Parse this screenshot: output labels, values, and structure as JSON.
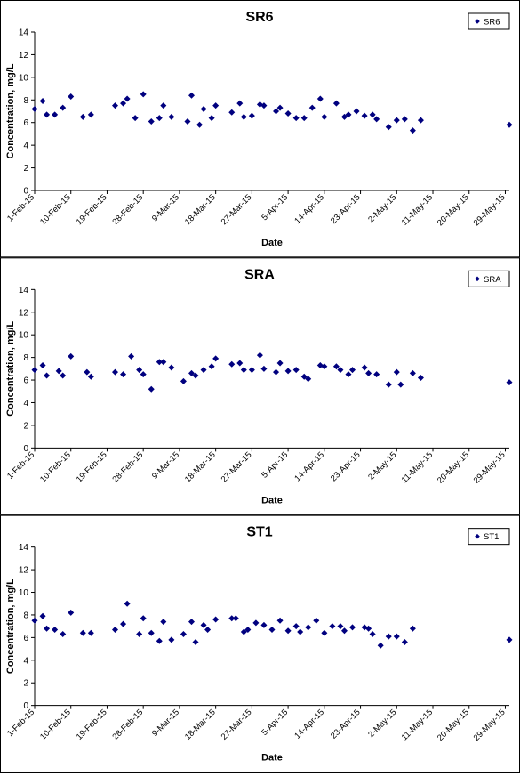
{
  "chart_data": [
    {
      "type": "scatter",
      "title": "SR6",
      "xlabel": "Date",
      "ylabel": "Concentration, mg/L",
      "ylim": [
        0,
        14
      ],
      "yticks": [
        0,
        2,
        4,
        6,
        8,
        10,
        12,
        14
      ],
      "xlim": [
        "1-Feb-15",
        "30-May-15"
      ],
      "xticks": [
        "1-Feb-15",
        "10-Feb-15",
        "19-Feb-15",
        "28-Feb-15",
        "9-Mar-15",
        "18-Mar-15",
        "27-Mar-15",
        "5-Apr-15",
        "14-Apr-15",
        "23-Apr-15",
        "2-May-15",
        "11-May-15",
        "20-May-15",
        "29-May-15"
      ],
      "grid": false,
      "legend_position": "top-right",
      "series": [
        {
          "name": "SR6",
          "color": "#00007f",
          "marker": "diamond",
          "points": [
            {
              "x": "1-Feb-15",
              "y": 7.2
            },
            {
              "x": "3-Feb-15",
              "y": 7.9
            },
            {
              "x": "4-Feb-15",
              "y": 6.7
            },
            {
              "x": "6-Feb-15",
              "y": 6.7
            },
            {
              "x": "8-Feb-15",
              "y": 7.3
            },
            {
              "x": "10-Feb-15",
              "y": 8.3
            },
            {
              "x": "13-Feb-15",
              "y": 6.5
            },
            {
              "x": "15-Feb-15",
              "y": 6.7
            },
            {
              "x": "21-Feb-15",
              "y": 7.5
            },
            {
              "x": "23-Feb-15",
              "y": 7.7
            },
            {
              "x": "24-Feb-15",
              "y": 8.1
            },
            {
              "x": "26-Feb-15",
              "y": 6.4
            },
            {
              "x": "28-Feb-15",
              "y": 8.5
            },
            {
              "x": "2-Mar-15",
              "y": 6.1
            },
            {
              "x": "4-Mar-15",
              "y": 6.4
            },
            {
              "x": "5-Mar-15",
              "y": 7.5
            },
            {
              "x": "7-Mar-15",
              "y": 6.5
            },
            {
              "x": "11-Mar-15",
              "y": 6.1
            },
            {
              "x": "12-Mar-15",
              "y": 8.4
            },
            {
              "x": "14-Mar-15",
              "y": 5.8
            },
            {
              "x": "15-Mar-15",
              "y": 7.2
            },
            {
              "x": "17-Mar-15",
              "y": 6.4
            },
            {
              "x": "18-Mar-15",
              "y": 7.5
            },
            {
              "x": "22-Mar-15",
              "y": 6.9
            },
            {
              "x": "24-Mar-15",
              "y": 7.7
            },
            {
              "x": "25-Mar-15",
              "y": 6.5
            },
            {
              "x": "27-Mar-15",
              "y": 6.6
            },
            {
              "x": "29-Mar-15",
              "y": 7.6
            },
            {
              "x": "30-Mar-15",
              "y": 7.5
            },
            {
              "x": "2-Apr-15",
              "y": 7.0
            },
            {
              "x": "3-Apr-15",
              "y": 7.3
            },
            {
              "x": "5-Apr-15",
              "y": 6.8
            },
            {
              "x": "7-Apr-15",
              "y": 6.4
            },
            {
              "x": "9-Apr-15",
              "y": 6.4
            },
            {
              "x": "11-Apr-15",
              "y": 7.3
            },
            {
              "x": "13-Apr-15",
              "y": 8.1
            },
            {
              "x": "14-Apr-15",
              "y": 6.5
            },
            {
              "x": "17-Apr-15",
              "y": 7.7
            },
            {
              "x": "19-Apr-15",
              "y": 6.5
            },
            {
              "x": "20-Apr-15",
              "y": 6.7
            },
            {
              "x": "22-Apr-15",
              "y": 7.0
            },
            {
              "x": "24-Apr-15",
              "y": 6.6
            },
            {
              "x": "26-Apr-15",
              "y": 6.7
            },
            {
              "x": "27-Apr-15",
              "y": 6.3
            },
            {
              "x": "30-Apr-15",
              "y": 5.6
            },
            {
              "x": "2-May-15",
              "y": 6.2
            },
            {
              "x": "4-May-15",
              "y": 6.3
            },
            {
              "x": "6-May-15",
              "y": 5.3
            },
            {
              "x": "8-May-15",
              "y": 6.2
            },
            {
              "x": "30-May-15",
              "y": 5.8
            }
          ]
        }
      ]
    },
    {
      "type": "scatter",
      "title": "SRA",
      "xlabel": "Date",
      "ylabel": "Concentration, mg/L",
      "ylim": [
        0,
        14
      ],
      "yticks": [
        0,
        2,
        4,
        6,
        8,
        10,
        12,
        14
      ],
      "xlim": [
        "1-Feb-15",
        "30-May-15"
      ],
      "xticks": [
        "1-Feb-15",
        "10-Feb-15",
        "19-Feb-15",
        "28-Feb-15",
        "9-Mar-15",
        "18-Mar-15",
        "27-Mar-15",
        "5-Apr-15",
        "14-Apr-15",
        "23-Apr-15",
        "2-May-15",
        "11-May-15",
        "20-May-15",
        "29-May-15"
      ],
      "grid": false,
      "legend_position": "top-right",
      "series": [
        {
          "name": "SRA",
          "color": "#00007f",
          "marker": "diamond",
          "points": [
            {
              "x": "1-Feb-15",
              "y": 6.9
            },
            {
              "x": "3-Feb-15",
              "y": 7.3
            },
            {
              "x": "4-Feb-15",
              "y": 6.4
            },
            {
              "x": "7-Feb-15",
              "y": 6.8
            },
            {
              "x": "8-Feb-15",
              "y": 6.4
            },
            {
              "x": "10-Feb-15",
              "y": 8.1
            },
            {
              "x": "14-Feb-15",
              "y": 6.7
            },
            {
              "x": "15-Feb-15",
              "y": 6.3
            },
            {
              "x": "21-Feb-15",
              "y": 6.7
            },
            {
              "x": "23-Feb-15",
              "y": 6.5
            },
            {
              "x": "25-Feb-15",
              "y": 8.1
            },
            {
              "x": "27-Feb-15",
              "y": 6.9
            },
            {
              "x": "28-Feb-15",
              "y": 6.5
            },
            {
              "x": "2-Mar-15",
              "y": 5.2
            },
            {
              "x": "4-Mar-15",
              "y": 7.6
            },
            {
              "x": "5-Mar-15",
              "y": 7.6
            },
            {
              "x": "7-Mar-15",
              "y": 7.1
            },
            {
              "x": "10-Mar-15",
              "y": 5.9
            },
            {
              "x": "12-Mar-15",
              "y": 6.6
            },
            {
              "x": "13-Mar-15",
              "y": 6.4
            },
            {
              "x": "15-Mar-15",
              "y": 6.9
            },
            {
              "x": "17-Mar-15",
              "y": 7.2
            },
            {
              "x": "18-Mar-15",
              "y": 7.9
            },
            {
              "x": "22-Mar-15",
              "y": 7.4
            },
            {
              "x": "24-Mar-15",
              "y": 7.5
            },
            {
              "x": "25-Mar-15",
              "y": 6.9
            },
            {
              "x": "27-Mar-15",
              "y": 6.9
            },
            {
              "x": "29-Mar-15",
              "y": 8.2
            },
            {
              "x": "30-Mar-15",
              "y": 7.0
            },
            {
              "x": "2-Apr-15",
              "y": 6.7
            },
            {
              "x": "3-Apr-15",
              "y": 7.5
            },
            {
              "x": "5-Apr-15",
              "y": 6.8
            },
            {
              "x": "7-Apr-15",
              "y": 6.9
            },
            {
              "x": "9-Apr-15",
              "y": 6.3
            },
            {
              "x": "10-Apr-15",
              "y": 6.1
            },
            {
              "x": "13-Apr-15",
              "y": 7.3
            },
            {
              "x": "14-Apr-15",
              "y": 7.2
            },
            {
              "x": "17-Apr-15",
              "y": 7.2
            },
            {
              "x": "18-Apr-15",
              "y": 6.9
            },
            {
              "x": "20-Apr-15",
              "y": 6.5
            },
            {
              "x": "21-Apr-15",
              "y": 6.9
            },
            {
              "x": "24-Apr-15",
              "y": 7.1
            },
            {
              "x": "25-Apr-15",
              "y": 6.6
            },
            {
              "x": "27-Apr-15",
              "y": 6.5
            },
            {
              "x": "30-Apr-15",
              "y": 5.6
            },
            {
              "x": "2-May-15",
              "y": 6.7
            },
            {
              "x": "3-May-15",
              "y": 5.6
            },
            {
              "x": "6-May-15",
              "y": 6.6
            },
            {
              "x": "8-May-15",
              "y": 6.2
            },
            {
              "x": "30-May-15",
              "y": 5.8
            }
          ]
        }
      ]
    },
    {
      "type": "scatter",
      "title": "ST1",
      "xlabel": "Date",
      "ylabel": "Concentration, mg/L",
      "ylim": [
        0,
        14
      ],
      "yticks": [
        0,
        2,
        4,
        6,
        8,
        10,
        12,
        14
      ],
      "xlim": [
        "1-Feb-15",
        "30-May-15"
      ],
      "xticks": [
        "1-Feb-15",
        "10-Feb-15",
        "19-Feb-15",
        "28-Feb-15",
        "9-Mar-15",
        "18-Mar-15",
        "27-Mar-15",
        "5-Apr-15",
        "14-Apr-15",
        "23-Apr-15",
        "2-May-15",
        "11-May-15",
        "20-May-15",
        "29-May-15"
      ],
      "grid": false,
      "legend_position": "top-right",
      "series": [
        {
          "name": "ST1",
          "color": "#00007f",
          "marker": "diamond",
          "points": [
            {
              "x": "1-Feb-15",
              "y": 7.5
            },
            {
              "x": "3-Feb-15",
              "y": 7.9
            },
            {
              "x": "4-Feb-15",
              "y": 6.8
            },
            {
              "x": "6-Feb-15",
              "y": 6.7
            },
            {
              "x": "8-Feb-15",
              "y": 6.3
            },
            {
              "x": "10-Feb-15",
              "y": 8.2
            },
            {
              "x": "13-Feb-15",
              "y": 6.4
            },
            {
              "x": "15-Feb-15",
              "y": 6.4
            },
            {
              "x": "21-Feb-15",
              "y": 6.7
            },
            {
              "x": "23-Feb-15",
              "y": 7.2
            },
            {
              "x": "24-Feb-15",
              "y": 9.0
            },
            {
              "x": "27-Feb-15",
              "y": 6.3
            },
            {
              "x": "28-Feb-15",
              "y": 7.7
            },
            {
              "x": "2-Mar-15",
              "y": 6.4
            },
            {
              "x": "4-Mar-15",
              "y": 5.7
            },
            {
              "x": "5-Mar-15",
              "y": 7.4
            },
            {
              "x": "7-Mar-15",
              "y": 5.8
            },
            {
              "x": "10-Mar-15",
              "y": 6.3
            },
            {
              "x": "12-Mar-15",
              "y": 7.4
            },
            {
              "x": "13-Mar-15",
              "y": 5.6
            },
            {
              "x": "15-Mar-15",
              "y": 7.1
            },
            {
              "x": "16-Mar-15",
              "y": 6.7
            },
            {
              "x": "18-Mar-15",
              "y": 7.6
            },
            {
              "x": "22-Mar-15",
              "y": 7.7
            },
            {
              "x": "23-Mar-15",
              "y": 7.7
            },
            {
              "x": "25-Mar-15",
              "y": 6.5
            },
            {
              "x": "26-Mar-15",
              "y": 6.7
            },
            {
              "x": "28-Mar-15",
              "y": 7.3
            },
            {
              "x": "30-Mar-15",
              "y": 7.1
            },
            {
              "x": "1-Apr-15",
              "y": 6.7
            },
            {
              "x": "3-Apr-15",
              "y": 7.5
            },
            {
              "x": "5-Apr-15",
              "y": 6.6
            },
            {
              "x": "7-Apr-15",
              "y": 7.0
            },
            {
              "x": "8-Apr-15",
              "y": 6.5
            },
            {
              "x": "10-Apr-15",
              "y": 6.9
            },
            {
              "x": "12-Apr-15",
              "y": 7.5
            },
            {
              "x": "14-Apr-15",
              "y": 6.4
            },
            {
              "x": "16-Apr-15",
              "y": 7.0
            },
            {
              "x": "18-Apr-15",
              "y": 7.0
            },
            {
              "x": "19-Apr-15",
              "y": 6.6
            },
            {
              "x": "21-Apr-15",
              "y": 6.9
            },
            {
              "x": "24-Apr-15",
              "y": 6.9
            },
            {
              "x": "25-Apr-15",
              "y": 6.8
            },
            {
              "x": "26-Apr-15",
              "y": 6.3
            },
            {
              "x": "28-Apr-15",
              "y": 5.3
            },
            {
              "x": "30-Apr-15",
              "y": 6.1
            },
            {
              "x": "2-May-15",
              "y": 6.1
            },
            {
              "x": "4-May-15",
              "y": 5.6
            },
            {
              "x": "6-May-15",
              "y": 6.8
            },
            {
              "x": "30-May-15",
              "y": 5.8
            }
          ]
        }
      ]
    }
  ]
}
